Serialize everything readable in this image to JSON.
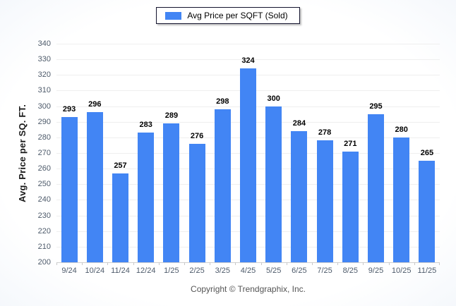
{
  "legend": {
    "label": "Avg Price per SQFT (Sold)",
    "swatch_color": "#4285f4"
  },
  "footer": {
    "text": "Copyright © Trendgraphix, Inc."
  },
  "chart_data": {
    "type": "bar",
    "title": "",
    "xlabel": "",
    "ylabel": "Avg. Price per SQ. FT.",
    "categories": [
      "9/24",
      "10/24",
      "11/24",
      "12/24",
      "1/25",
      "2/25",
      "3/25",
      "4/25",
      "5/25",
      "6/25",
      "7/25",
      "8/25",
      "9/25",
      "10/25",
      "11/25"
    ],
    "values": [
      293,
      296,
      257,
      283,
      289,
      276,
      298,
      324,
      300,
      284,
      278,
      271,
      295,
      280,
      265
    ],
    "series_name": "Avg Price per SQFT (Sold)",
    "ylim": [
      200,
      340
    ],
    "ytick_step": 10,
    "bar_color": "#4285f4",
    "grid": "horizontal",
    "legend_position": "top-center",
    "data_labels": "above-bars"
  }
}
